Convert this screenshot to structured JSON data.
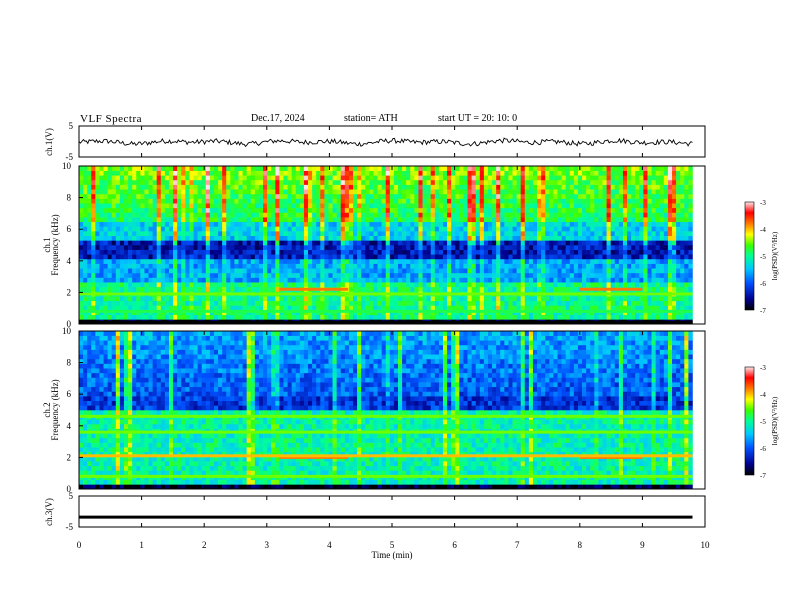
{
  "header": {
    "title": "VLF  Spectra",
    "date": "Dec.17, 2024",
    "station": "station= ATH",
    "start": "start  UT  =   20: 10: 0"
  },
  "chart_data": [
    {
      "type": "line",
      "panel": "ch1-waveform",
      "ylabel": "ch.1(V)",
      "ylim": [
        -5,
        5
      ],
      "yticks": [
        "5",
        "-5"
      ],
      "x_range_min": [
        0,
        9.8
      ],
      "note": "noisy waveform around -0.2 V with fluctuations of about ±1 V"
    },
    {
      "type": "heatmap",
      "panel": "ch1-spectrogram",
      "ylabel": "ch.1\nFrequency  (kHz)",
      "xlim": [
        0,
        10
      ],
      "data_x_extent": [
        0,
        9.8
      ],
      "ylim": [
        0,
        10
      ],
      "yticks": [
        "0",
        "2",
        "4",
        "6",
        "8",
        "10"
      ],
      "colorbar": {
        "label": "log(PSD)(V²/Hz)",
        "range": [
          -7,
          -3
        ],
        "ticks": [
          "-3",
          "-4",
          "-5",
          "-6",
          "-7"
        ]
      },
      "features": [
        {
          "name": "broadband sferics",
          "freq_khz": [
            6.5,
            10
          ],
          "log_psd": -4.5
        },
        {
          "name": "low-power band",
          "freq_khz": [
            4.0,
            5.3
          ],
          "log_psd": -6.3
        },
        {
          "name": "transmitter line",
          "freq_khz": 2.2,
          "t_min": [
            3.2,
            4.3
          ],
          "log_psd": -3.8
        },
        {
          "name": "transmitter line",
          "freq_khz": 2.2,
          "t_min": [
            8.0,
            9.0
          ],
          "log_psd": -3.8
        },
        {
          "name": "line",
          "freq_khz": 1.9,
          "log_psd": -4.5
        },
        {
          "name": "line",
          "freq_khz": 0.8,
          "log_psd": -4.8
        },
        {
          "name": "baseline",
          "freq_khz": 0.1,
          "log_psd": -7
        }
      ]
    },
    {
      "type": "heatmap",
      "panel": "ch2-spectrogram",
      "ylabel": "ch.2\nFrequency  (kHz)",
      "xlim": [
        0,
        10
      ],
      "data_x_extent": [
        0,
        9.8
      ],
      "ylim": [
        0,
        10
      ],
      "yticks": [
        "0",
        "2",
        "4",
        "6",
        "8",
        "10"
      ],
      "colorbar": {
        "label": "log(PSD)(V²/Hz)",
        "range": [
          -7,
          -3
        ],
        "ticks": [
          "-3",
          "-4",
          "-5",
          "-6",
          "-7"
        ]
      },
      "features": [
        {
          "name": "broadband sferics",
          "freq_khz": [
            6.5,
            10
          ],
          "log_psd": -5.5
        },
        {
          "name": "line",
          "freq_khz": 4.6,
          "log_psd": -4.5
        },
        {
          "name": "line",
          "freq_khz": 3.6,
          "log_psd": -4.5
        },
        {
          "name": "transmitter line",
          "freq_khz": 2.0,
          "t_min": [
            3.2,
            4.3
          ],
          "log_psd": -3.8
        },
        {
          "name": "transmitter line",
          "freq_khz": 2.0,
          "t_min": [
            8.0,
            9.0
          ],
          "log_psd": -3.8
        },
        {
          "name": "line",
          "freq_khz": 2.1,
          "log_psd": -4.0
        },
        {
          "name": "line",
          "freq_khz": 0.8,
          "log_psd": -4.5
        }
      ]
    },
    {
      "type": "line",
      "panel": "ch3-waveform",
      "ylabel": "ch.3(V)",
      "ylim": [
        -5,
        5
      ],
      "yticks": [
        "5",
        "-5"
      ],
      "x_range_min": [
        0,
        9.8
      ],
      "constant_value": -1.8
    }
  ],
  "xaxis": {
    "label": "Time  (min)",
    "ticks": [
      "0",
      "1",
      "2",
      "3",
      "4",
      "5",
      "6",
      "7",
      "8",
      "9",
      "10"
    ]
  },
  "colors": [
    "#000088",
    "#0000ff",
    "#00aaff",
    "#00dddd",
    "#00ff88",
    "#44ff00",
    "#ffff00",
    "#ff8800",
    "#ff0000",
    "#ffdddd"
  ]
}
